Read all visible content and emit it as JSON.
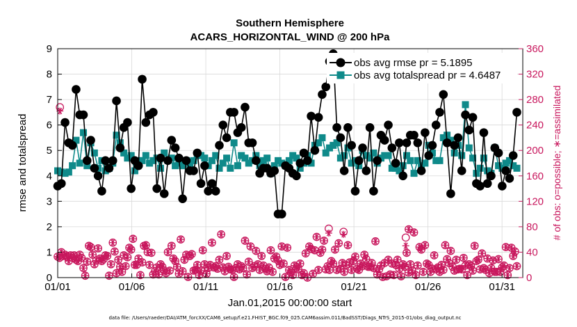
{
  "chart_data": {
    "type": "line",
    "title_line1": "Southern Hemisphere",
    "title_line2": "ACARS_HORIZONTAL_WIND @ 200 hPa",
    "xlabel": "Jan.01,2015 00:00:00 start",
    "ylabel_left": "rmse and totalspread",
    "ylabel_right": "# of obs: o=possible; ∗=assimilated",
    "x_ticks": [
      "01/01",
      "01/06",
      "01/11",
      "01/16",
      "01/21",
      "01/26",
      "01/31"
    ],
    "x_tick_days": [
      1,
      6,
      11,
      16,
      21,
      26,
      31
    ],
    "xlim": [
      1,
      32.4
    ],
    "ylim_left": [
      0,
      9
    ],
    "ylim_right": [
      0,
      360
    ],
    "y_ticks_left": [
      "0",
      "1",
      "2",
      "3",
      "4",
      "5",
      "6",
      "7",
      "8",
      "9"
    ],
    "y_ticks_right": [
      "0",
      "40",
      "80",
      "120",
      "160",
      "200",
      "240",
      "280",
      "320",
      "360"
    ],
    "grid": true,
    "legend_placement": "top-right",
    "colors": {
      "rmse": "#000000",
      "spread": "#0f8a8a",
      "obs": "#c8175d"
    },
    "series": [
      {
        "name": "obs avg rmse pr = 5.1895",
        "values": [
          3.6,
          3.7,
          6.1,
          5.3,
          5.2,
          7.4,
          6.4,
          6.4,
          4.6,
          5.4,
          4.3,
          4.0,
          3.4,
          4.6,
          4.3,
          4.6,
          6.95,
          5.1,
          5.9,
          6.1,
          3.5,
          4.6,
          4.4,
          7.8,
          6.1,
          6.4,
          6.5,
          3.5,
          4.7,
          3.3,
          4.6,
          5.4,
          5.1,
          4.7,
          3.1,
          4.6,
          4.2,
          4.2,
          4.9,
          3.7,
          4.4,
          3.4,
          3.7,
          3.4,
          5.2,
          6.0,
          5.5,
          6.5,
          6.5,
          5.7,
          5.9,
          6.7,
          5.3,
          5.3,
          4.6,
          4.1,
          4.3,
          4.3,
          4.1,
          4.2,
          2.5,
          2.5,
          4.4,
          4.3,
          4.1,
          4.0,
          4.5,
          4.9,
          4.6,
          6.35,
          5.0,
          6.3,
          7.2,
          7.5,
          8.5,
          8.8,
          5.9,
          5.5,
          4.2,
          5.9,
          5.2,
          3.4,
          4.6,
          5.1,
          4.2,
          5.9,
          3.4,
          4.6,
          5.6,
          5.4,
          6.0,
          5.1,
          4.5,
          5.3,
          4.0,
          5.3,
          5.6,
          5.6,
          5.3,
          4.2,
          5.7,
          4.8,
          5.2,
          6.0,
          6.5,
          7.2,
          5.3,
          3.3,
          5.2,
          5.5,
          4.2,
          6.4,
          5.8,
          6.3,
          3.7,
          3.6,
          5.7,
          3.7,
          4.0,
          5.1,
          4.9,
          3.6,
          4.2,
          3.9,
          4.8,
          6.5
        ]
      },
      {
        "name": "obs avg totalspread pr = 4.6487",
        "values": [
          4.2,
          4.15,
          4.1,
          4.15,
          4.4,
          5.4,
          4.5,
          5.7,
          4.4,
          5.3,
          4.9,
          4.3,
          4.6,
          4.2,
          4.3,
          4.5,
          5.6,
          5.3,
          4.9,
          4.7,
          4.8,
          4.2,
          4.6,
          4.6,
          4.8,
          4.5,
          4.6,
          4.7,
          4.3,
          4.9,
          4.6,
          4.7,
          4.4,
          4.5,
          4.4,
          4.6,
          4.4,
          4.6,
          4.8,
          4.8,
          4.7,
          4.4,
          4.6,
          4.8,
          4.3,
          4.5,
          4.7,
          4.3,
          5.3,
          4.4,
          4.8,
          4.7,
          4.5,
          4.6,
          4.8,
          4.4,
          4.6,
          4.7,
          4.1,
          4.4,
          4.6,
          4.5,
          4.4,
          4.6,
          4.8,
          4.7,
          4.3,
          4.5,
          4.8,
          4.5,
          5.2,
          5.3,
          5.5,
          4.9,
          5.1,
          5.2,
          5.3,
          4.7,
          4.8,
          5.1,
          4.5,
          4.6,
          4.4,
          5.0,
          4.8,
          4.7,
          4.9,
          4.5,
          4.7,
          4.8,
          4.8,
          4.3,
          4.3,
          4.2,
          4.4,
          4.8,
          4.6,
          4.1,
          4.6,
          4.4,
          4.5,
          5.2,
          4.9,
          4.6,
          4.6,
          5.5,
          5.6,
          5.4,
          4.9,
          5.2,
          4.8,
          6.8,
          5.1,
          4.7,
          4.1,
          4.3,
          4.7,
          4.2,
          4.1,
          5.1,
          4.4,
          4.3,
          4.5,
          4.6,
          4.4,
          4.3
        ]
      },
      {
        "name": "obs count possible",
        "values": [
          33,
          31,
          40,
          34,
          36,
          33,
          26,
          35,
          31,
          35,
          28,
          26,
          36,
          31,
          15,
          3,
          25,
          50,
          48,
          36,
          21,
          27,
          46,
          30,
          26,
          29,
          35,
          34,
          3,
          21,
          55,
          41,
          7,
          28,
          17,
          9,
          35,
          18,
          32,
          47,
          44,
          61,
          20,
          20,
          30,
          4,
          24,
          50,
          51,
          40,
          20,
          39,
          5,
          10,
          16,
          5,
          21,
          17,
          11,
          7,
          40,
          11,
          50,
          30,
          26,
          17,
          6,
          60,
          10,
          28,
          36,
          1,
          34,
          37,
          11,
          12,
          20,
          4,
          11,
          43,
          21,
          6,
          15,
          20,
          55,
          16,
          18,
          14,
          28,
          68,
          16,
          10,
          34,
          17,
          13,
          12,
          1,
          15,
          21,
          13,
          18,
          15,
          58,
          5,
          25,
          49,
          15,
          18,
          42,
          21,
          12,
          34,
          19,
          14,
          10,
          16,
          43,
          9,
          30,
          33,
          27,
          20,
          49,
          22,
          1,
          47,
          12,
          8,
          4,
          19,
          16,
          13,
          22,
          4,
          7,
          38,
          0,
          49,
          45,
          6,
          43,
          64,
          12,
          39,
          44,
          58,
          13,
          18,
          12,
          26,
          22,
          44,
          12,
          54,
          14,
          23,
          9,
          20,
          51,
          24,
          12,
          26,
          33,
          14,
          12,
          22,
          18,
          36,
          29,
          17,
          17,
          23,
          15,
          57,
          5,
          13,
          19,
          1,
          23,
          2,
          28,
          5,
          22,
          4,
          20,
          28,
          14,
          2,
          21,
          17,
          39,
          8,
          21,
          11,
          71,
          4,
          19,
          48,
          44,
          9,
          51,
          22,
          20,
          9,
          14,
          35,
          13,
          16,
          9,
          20,
          12,
          51,
          29,
          23,
          42,
          17,
          11,
          28,
          13,
          14,
          13,
          31,
          19,
          4,
          21,
          18,
          11,
          50,
          26,
          28,
          13,
          38,
          15,
          12,
          30,
          7,
          15,
          27,
          9,
          9,
          29,
          9,
          16,
          19,
          48,
          4,
          15,
          47,
          34,
          41,
          18
        ]
      },
      {
        "name": "obs count assimilated",
        "values": [
          33,
          31,
          40,
          34,
          36,
          33,
          26,
          35,
          31,
          35,
          28,
          26,
          36,
          31,
          15,
          3,
          25,
          50,
          48,
          36,
          21,
          27,
          46,
          30,
          26,
          29,
          35,
          34,
          3,
          21,
          55,
          41,
          7,
          28,
          17,
          9,
          35,
          18,
          32,
          47,
          44,
          61,
          20,
          20,
          30,
          4,
          24,
          50,
          51,
          40,
          20,
          39,
          5,
          10,
          16,
          5,
          21,
          17,
          11,
          7,
          40,
          11,
          50,
          30,
          26,
          17,
          6,
          60,
          10,
          28,
          36,
          1,
          34,
          37,
          11,
          12,
          20,
          4,
          11,
          43,
          21,
          6,
          15,
          20,
          55,
          16,
          18,
          14,
          28,
          68,
          16,
          10,
          34,
          17,
          13,
          12,
          1,
          15,
          21,
          13,
          18,
          15,
          58,
          5,
          25,
          49,
          15,
          18,
          42,
          21,
          12,
          34,
          19,
          14,
          10,
          16,
          43,
          9,
          30,
          33,
          27,
          20,
          49,
          22,
          1,
          47,
          12,
          8,
          4,
          19,
          16,
          13,
          22,
          4,
          7,
          38,
          0,
          49,
          45,
          6,
          43,
          64,
          12,
          39,
          44,
          58,
          13,
          18,
          12,
          26,
          22,
          44,
          12,
          54,
          14,
          23,
          9,
          20,
          51,
          24,
          12,
          26,
          33,
          14,
          12,
          22,
          18,
          36,
          29,
          17,
          17,
          23,
          15,
          57,
          5,
          13,
          19,
          1,
          23,
          2,
          28,
          5,
          22,
          4,
          20,
          28,
          14,
          2,
          21,
          17,
          39,
          8,
          21,
          11,
          71,
          4,
          19,
          48,
          44,
          9,
          51,
          22,
          20,
          9,
          14,
          35,
          13,
          16,
          9,
          20,
          12,
          51,
          29,
          23,
          42,
          17,
          11,
          28,
          13,
          14,
          13,
          31,
          19,
          4,
          21,
          18,
          11,
          50,
          26,
          28,
          13,
          38,
          15,
          12,
          30,
          7,
          15,
          27,
          9,
          9,
          29,
          9,
          16,
          19,
          48,
          4,
          15,
          47,
          34,
          41,
          18
        ]
      }
    ],
    "obs_highlights": [
      {
        "day": 1.15,
        "possible": 268,
        "assimilated": 262
      },
      {
        "day": 19.3,
        "possible": 77,
        "assimilated": 70
      },
      {
        "day": 20.3,
        "possible": 72,
        "assimilated": 68
      },
      {
        "day": 24.5,
        "possible": 63,
        "assimilated": 50
      },
      {
        "day": 24.7,
        "possible": 76,
        "assimilated": 76
      }
    ]
  },
  "footnote": "data file: /Users/raeder/DAI/ATM_forcXX/CAM6_setup/f.e21.FHIST_BGC.f09_025.CAM6assim.011/BadSST/Diags_NTrS_2015-01/obs_diag_output.nc"
}
